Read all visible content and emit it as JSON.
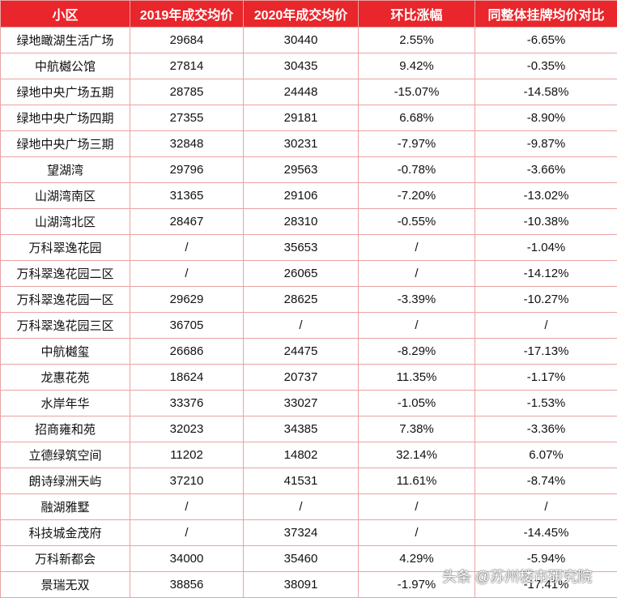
{
  "table": {
    "header": [
      "小区",
      "2019年成交均价",
      "2020年成交均价",
      "环比涨幅",
      "同整体挂牌均价对比"
    ],
    "rows": [
      [
        "绿地瞰湖生活广场",
        "29684",
        "30440",
        "2.55%",
        "-6.65%"
      ],
      [
        "中航樾公馆",
        "27814",
        "30435",
        "9.42%",
        "-0.35%"
      ],
      [
        "绿地中央广场五期",
        "28785",
        "24448",
        "-15.07%",
        "-14.58%"
      ],
      [
        "绿地中央广场四期",
        "27355",
        "29181",
        "6.68%",
        "-8.90%"
      ],
      [
        "绿地中央广场三期",
        "32848",
        "30231",
        "-7.97%",
        "-9.87%"
      ],
      [
        "望湖湾",
        "29796",
        "29563",
        "-0.78%",
        "-3.66%"
      ],
      [
        "山湖湾南区",
        "31365",
        "29106",
        "-7.20%",
        "-13.02%"
      ],
      [
        "山湖湾北区",
        "28467",
        "28310",
        "-0.55%",
        "-10.38%"
      ],
      [
        "万科翠逸花园",
        "/",
        "35653",
        "/",
        "-1.04%"
      ],
      [
        "万科翠逸花园二区",
        "/",
        "26065",
        "/",
        "-14.12%"
      ],
      [
        "万科翠逸花园一区",
        "29629",
        "28625",
        "-3.39%",
        "-10.27%"
      ],
      [
        "万科翠逸花园三区",
        "36705",
        "/",
        "/",
        "/"
      ],
      [
        "中航樾玺",
        "26686",
        "24475",
        "-8.29%",
        "-17.13%"
      ],
      [
        "龙惠花苑",
        "18624",
        "20737",
        "11.35%",
        "-1.17%"
      ],
      [
        "水岸年华",
        "33376",
        "33027",
        "-1.05%",
        "-1.53%"
      ],
      [
        "招商雍和苑",
        "32023",
        "34385",
        "7.38%",
        "-3.36%"
      ],
      [
        "立德绿筑空间",
        "11202",
        "14802",
        "32.14%",
        "6.07%"
      ],
      [
        "朗诗绿洲天屿",
        "37210",
        "41531",
        "11.61%",
        "-8.74%"
      ],
      [
        "融湖雅墅",
        "/",
        "/",
        "/",
        "/"
      ],
      [
        "科技城金茂府",
        "/",
        "37324",
        "/",
        "-14.45%"
      ],
      [
        "万科新都会",
        "34000",
        "35460",
        "4.29%",
        "-5.94%"
      ],
      [
        "景瑞无双",
        "38856",
        "38091",
        "-1.97%",
        "-17.41%"
      ]
    ]
  },
  "watermark": "头条 @苏州楼市研究院"
}
